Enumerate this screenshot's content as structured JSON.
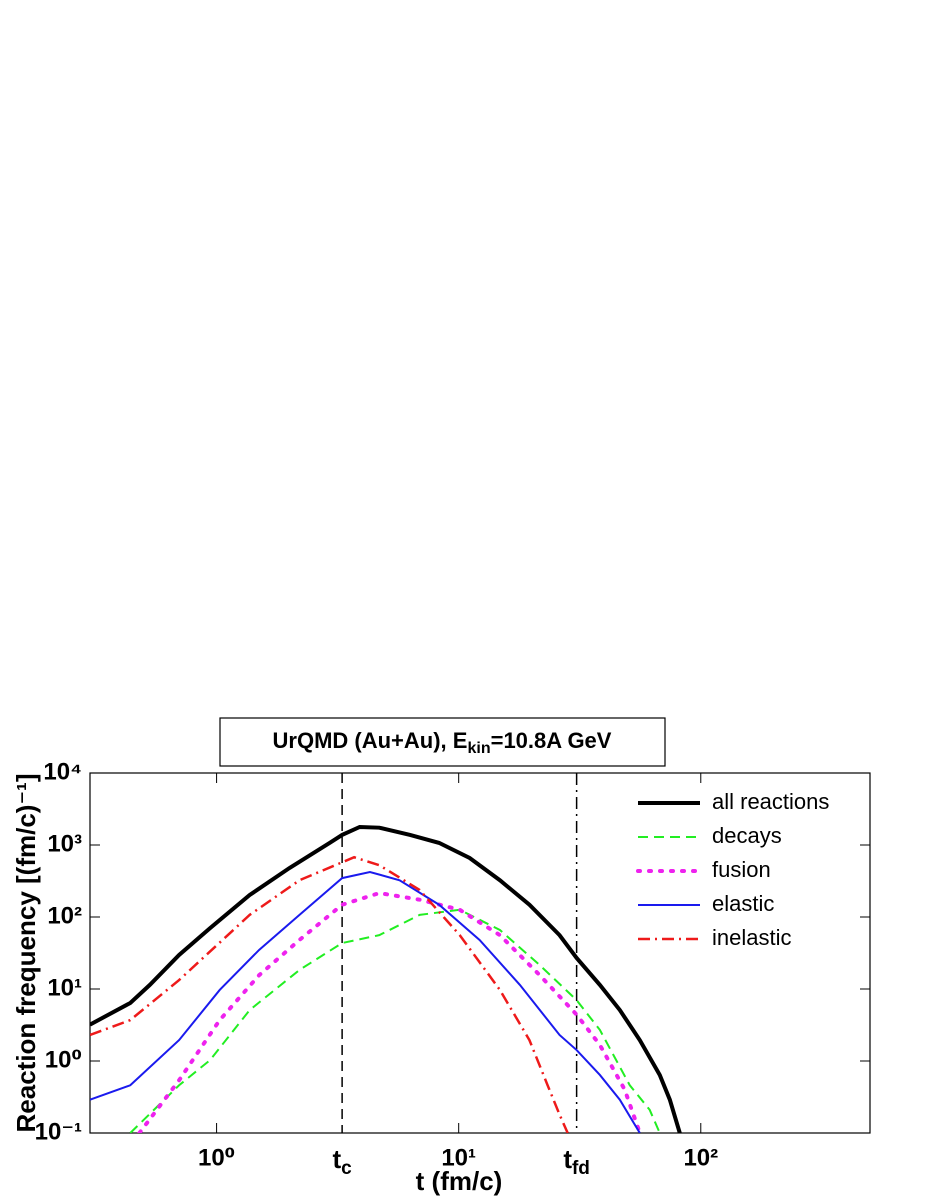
{
  "chart_data": {
    "type": "line",
    "title_parts": [
      "UrQMD (Au+Au), E",
      "kin",
      "=10.8A GeV"
    ],
    "xlabel": "t (fm/c)",
    "ylabel": "Reaction frequency [(fm/c)⁻¹]",
    "xscale": "log",
    "yscale": "log",
    "xlim": [
      0.3,
      500
    ],
    "ylim": [
      0.1,
      10000
    ],
    "xticks": [
      {
        "value": 1,
        "label": "10⁰"
      },
      {
        "value": 10,
        "label": "10¹"
      },
      {
        "value": 100,
        "label": "10²"
      }
    ],
    "yticks": [
      {
        "value": 0.1,
        "label": "10⁻¹"
      },
      {
        "value": 1,
        "label": "10⁰"
      },
      {
        "value": 10,
        "label": "10¹"
      },
      {
        "value": 100,
        "label": "10²"
      },
      {
        "value": 1000,
        "label": "10³"
      },
      {
        "value": 10000,
        "label": "10⁴"
      }
    ],
    "legend": "upper right",
    "vlines": [
      {
        "x": 3.3,
        "label": "t",
        "sub": "c",
        "style": "dashed"
      },
      {
        "x": 30.7,
        "label": "t",
        "sub": "fd",
        "style": "dashdot"
      }
    ],
    "series": [
      {
        "name": "all reactions",
        "color": "#000000",
        "style": "solid",
        "linewidth": 4,
        "x": [
          0.3,
          0.44,
          0.53,
          0.7,
          0.94,
          1.37,
          2.0,
          2.93,
          3.3,
          3.9,
          4.7,
          6.3,
          8.3,
          11.1,
          14.8,
          19.6,
          26.1,
          30.7,
          38.3,
          46.3,
          56.0,
          67.7,
          74.5,
          81.9
        ],
        "values": [
          3.2,
          6.4,
          11.4,
          29.7,
          70,
          202,
          479,
          1070,
          1380,
          1780,
          1740,
          1380,
          1070,
          660,
          324,
          148,
          56,
          27,
          11.4,
          5.1,
          1.95,
          0.64,
          0.29,
          0.1
        ]
      },
      {
        "name": "decays",
        "color": "#22ee22",
        "style": "dashed",
        "linewidth": 2,
        "x": [
          0.44,
          0.7,
          0.94,
          1.37,
          2.2,
          3.3,
          4.7,
          6.9,
          10.1,
          14.8,
          21.6,
          30.7,
          38.3,
          50.9,
          61.5,
          67.7
        ],
        "values": [
          0.1,
          0.46,
          1.03,
          5.1,
          18.4,
          43.5,
          56,
          107,
          126,
          66,
          21.5,
          7.0,
          2.7,
          0.46,
          0.21,
          0.1
        ]
      },
      {
        "name": "fusion",
        "color": "#ee22ee",
        "style": "dotted",
        "linewidth": 4,
        "x": [
          0.48,
          0.7,
          1.03,
          1.5,
          2.2,
          3.3,
          4.7,
          6.9,
          10.1,
          14.8,
          21.6,
          30.7,
          38.3,
          48.5,
          56.0
        ],
        "values": [
          0.1,
          0.54,
          3.7,
          15.6,
          48,
          148,
          215,
          174,
          126,
          56,
          15.6,
          4.4,
          1.67,
          0.4,
          0.1
        ]
      },
      {
        "name": "elastic",
        "color": "#1a1aee",
        "style": "solid",
        "linewidth": 2,
        "x": [
          0.3,
          0.44,
          0.7,
          1.03,
          1.5,
          2.2,
          3.3,
          4.3,
          5.7,
          8.3,
          12.2,
          17.9,
          26.1,
          30.7,
          38.3,
          46.3,
          56.0
        ],
        "values": [
          0.29,
          0.46,
          1.95,
          9.7,
          35,
          107,
          347,
          422,
          324,
          148,
          48,
          11.4,
          2.3,
          1.42,
          0.64,
          0.29,
          0.1
        ]
      },
      {
        "name": "inelastic",
        "color": "#ee1a1a",
        "style": "dashdot",
        "linewidth": 2.5,
        "x": [
          0.3,
          0.44,
          0.7,
          1.37,
          2.2,
          3.3,
          3.7,
          4.7,
          6.9,
          10.1,
          14.8,
          19.6,
          23.3,
          26.1,
          28.2
        ],
        "values": [
          2.3,
          3.7,
          13.3,
          107,
          324,
          575,
          676,
          525,
          237,
          56,
          9.7,
          1.95,
          0.46,
          0.18,
          0.1
        ]
      }
    ]
  }
}
